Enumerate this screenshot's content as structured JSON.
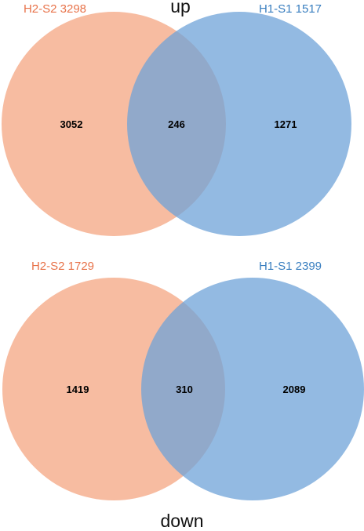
{
  "colors": {
    "left_set": "#f4a582",
    "right_set": "#6fa3d8",
    "left_label": "#e8734a",
    "right_label": "#3a7fc0",
    "count_text": "#000000"
  },
  "panels": [
    {
      "title": "up",
      "left": {
        "label": "H2-S2 3298",
        "only": "3052"
      },
      "right": {
        "label": "H1-S1 1517",
        "only": "1271"
      },
      "intersection": "246"
    },
    {
      "title": "down",
      "left": {
        "label": "H2-S2 1729",
        "only": "1419"
      },
      "right": {
        "label": "H1-S1 2399",
        "only": "2089"
      },
      "intersection": "310"
    }
  ]
}
